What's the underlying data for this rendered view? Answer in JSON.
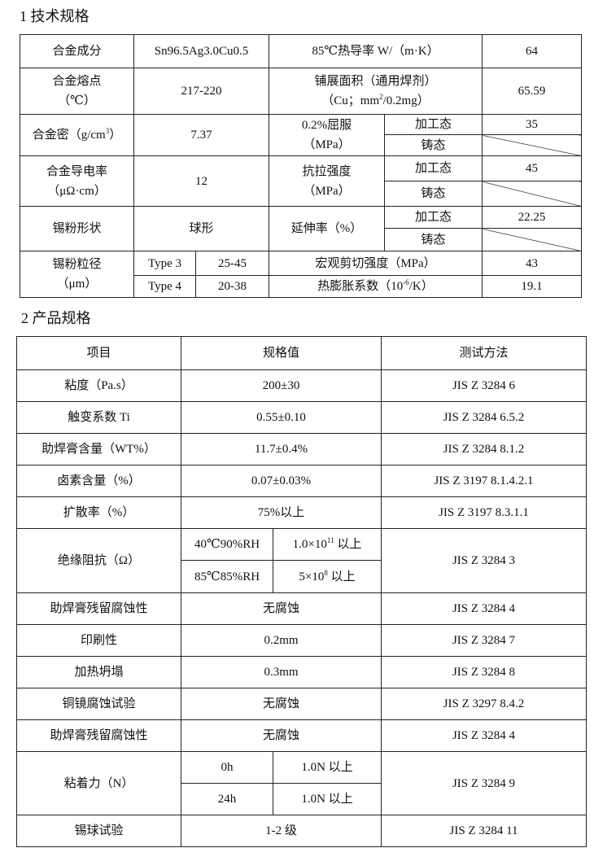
{
  "section1": {
    "title": "1  技术规格"
  },
  "t1": {
    "r1": [
      "合金成分",
      "Sn96.5Ag3.0Cu0.5",
      "85℃热导率 W/（m·K）",
      "64"
    ],
    "r2": [
      "合金熔点",
      "（℃）",
      "217-220",
      "铺展面积（通用焊剂）",
      "（Cu；mm",
      "2",
      "/0.2mg）",
      "65.59"
    ],
    "r3": [
      "合金密（g/cm",
      "3",
      "）",
      "7.37",
      "0.2%屈服",
      "（MPa）",
      "加工态",
      "35",
      "铸态"
    ],
    "r4": [
      "合金导电率",
      "（μΩ·cm）",
      "12",
      "抗拉强度",
      "（MPa）",
      "加工态",
      "45",
      "铸态"
    ],
    "r5": [
      "锡粉形状",
      "球形",
      "延伸率（%）",
      "加工态",
      "22.25",
      "铸态"
    ],
    "r6": [
      "锡粉粒径",
      "（μm）",
      "Type 3",
      "25-45",
      "宏观剪切强度（MPa）",
      "43",
      "Type 4",
      "20-38",
      "热膨胀系数（10",
      "-6",
      "/K）",
      "19.1"
    ]
  },
  "section2": {
    "title": "2  产品规格"
  },
  "t2": {
    "headers": [
      "项目",
      "规格值",
      "测试方法"
    ],
    "rows": [
      [
        "粘度（Pa.s）",
        "200±30",
        "JIS Z 3284 6"
      ],
      [
        "触变系数 Ti",
        "0.55±0.10",
        "JIS Z 3284 6.5.2"
      ],
      [
        "助焊膏含量（WT%）",
        "11.7±0.4%",
        "JIS Z 3284 8.1.2"
      ],
      [
        "卤素含量（%）",
        "0.07±0.03%",
        "JIS Z 3197 8.1.4.2.1"
      ],
      [
        "扩散率（%）",
        "75%以上",
        "JIS Z 3197 8.3.1.1"
      ]
    ],
    "insulation": {
      "label": "绝缘阻抗（Ω）",
      "c1": "40℃90%RH",
      "v1a": "1.0×10",
      "v1s": "11",
      "v1b": " 以上",
      "c2": "85℃85%RH",
      "v2a": "5×10",
      "v2s": "8",
      "v2b": " 以上",
      "method": "JIS Z 3284 3"
    },
    "rows2": [
      [
        "助焊膏残留腐蚀性",
        "无腐蚀",
        "JIS Z 3284 4"
      ],
      [
        "印刷性",
        "0.2mm",
        "JIS Z 3284 7"
      ],
      [
        "加热坍塌",
        "0.3mm",
        "JIS Z 3284 8"
      ],
      [
        "铜镜腐蚀试验",
        "无腐蚀",
        "JIS Z 3297 8.4.2"
      ],
      [
        "助焊膏残留腐蚀性",
        "无腐蚀",
        "JIS Z 3284 4"
      ]
    ],
    "adhesion": {
      "label": "粘着力（N）",
      "c1": "0h",
      "v1": "1.0N 以上",
      "c2": "24h",
      "v2": "1.0N 以上",
      "method": "JIS Z 3284 9"
    },
    "last": [
      "锡球试验",
      "1-2 级",
      "JIS Z 3284 11"
    ]
  }
}
